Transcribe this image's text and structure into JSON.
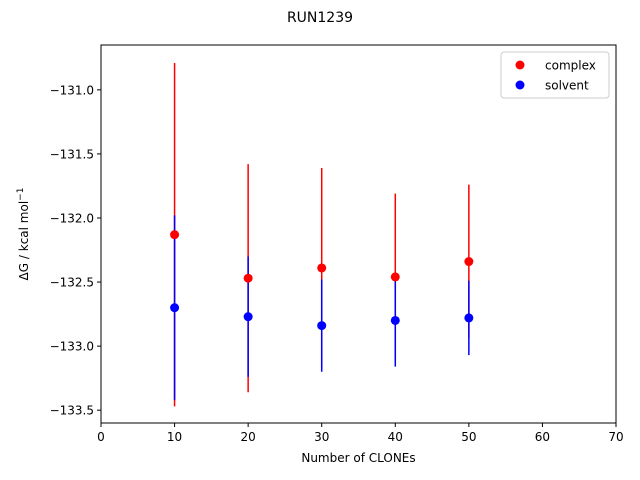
{
  "chart_data": {
    "type": "scatter",
    "title": "RUN1239",
    "xlabel": "Number of CLONEs",
    "ylabel_main": "ΔG / kcal mol",
    "ylabel_sup": "−1",
    "xlim": [
      0,
      70
    ],
    "ylim": [
      -133.6,
      -130.65
    ],
    "xticks": [
      0,
      10,
      20,
      30,
      40,
      50,
      60,
      70
    ],
    "xtick_labels": [
      "0",
      "10",
      "20",
      "30",
      "40",
      "50",
      "60",
      "70"
    ],
    "yticks": [
      -133.5,
      -133.0,
      -132.5,
      -132.0,
      -131.5,
      -131.0
    ],
    "ytick_labels": [
      "−133.5",
      "−133.0",
      "−132.5",
      "−132.0",
      "−131.5",
      "−131.0"
    ],
    "grid": false,
    "legend_position": "top-right",
    "series": [
      {
        "name": "complex",
        "color": "#ff0000",
        "x": [
          10,
          20,
          30,
          40,
          50
        ],
        "y": [
          -132.13,
          -132.47,
          -132.39,
          -132.46,
          -132.34
        ],
        "yerr": [
          1.34,
          0.89,
          0.78,
          0.65,
          0.6
        ]
      },
      {
        "name": "solvent",
        "color": "#0000ff",
        "x": [
          10,
          20,
          30,
          40,
          50
        ],
        "y": [
          -132.7,
          -132.77,
          -132.84,
          -132.8,
          -132.78
        ],
        "yerr": [
          0.72,
          0.47,
          0.36,
          0.36,
          0.29
        ]
      }
    ]
  }
}
